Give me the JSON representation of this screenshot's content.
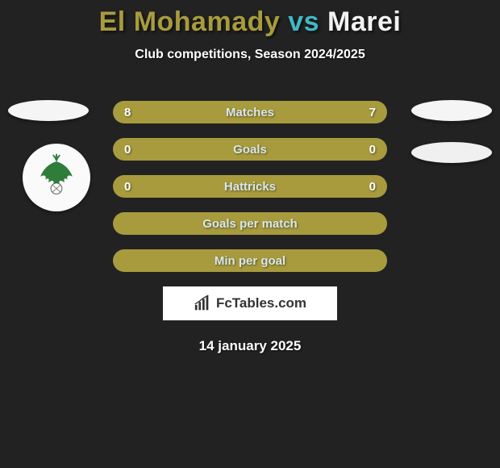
{
  "title": {
    "player1": "El Mohamady",
    "vs": "vs",
    "player2": "Marei",
    "player1_color": "#a89b3e",
    "vs_color": "#3fb8c4",
    "player2_color": "#f2f2f2"
  },
  "subtitle": "Club competitions, Season 2024/2025",
  "background_color": "#222222",
  "rows": [
    {
      "label": "Matches",
      "left": "8",
      "right": "7",
      "bg": "#a89b3e",
      "show_values": true
    },
    {
      "label": "Goals",
      "left": "0",
      "right": "0",
      "bg": "#a89b3e",
      "show_values": true
    },
    {
      "label": "Hattricks",
      "left": "0",
      "right": "0",
      "bg": "#a89b3e",
      "show_values": true
    },
    {
      "label": "Goals per match",
      "left": "",
      "right": "",
      "bg": "#a89b3e",
      "show_values": false
    },
    {
      "label": "Min per goal",
      "left": "",
      "right": "",
      "bg": "#a89b3e",
      "show_values": false
    }
  ],
  "row_text_color": "#ffffff",
  "row_label_color": "#d9e8ea",
  "pill_color": "#f5f5f5",
  "badge": {
    "bird_color": "#2e7d3a",
    "ball_color": "#7a7a7a"
  },
  "brand": {
    "text": "FcTables.com",
    "icon_color": "#333333"
  },
  "date": "14 january 2025"
}
